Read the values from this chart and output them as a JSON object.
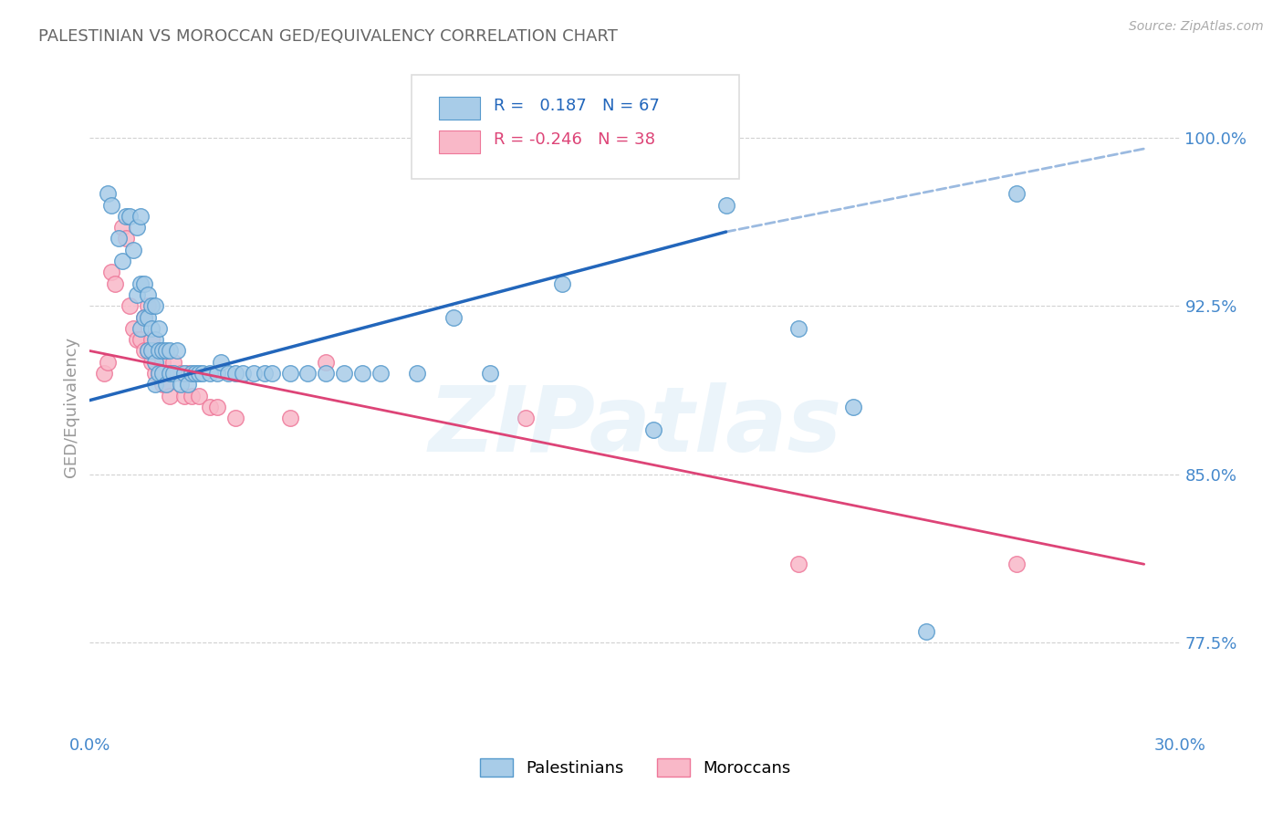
{
  "title": "PALESTINIAN VS MOROCCAN GED/EQUIVALENCY CORRELATION CHART",
  "source": "Source: ZipAtlas.com",
  "legend_blue": "Palestinians",
  "legend_pink": "Moroccans",
  "ylabel": "GED/Equivalency",
  "xlim": [
    0.0,
    0.3
  ],
  "ylim": [
    0.735,
    1.025
  ],
  "xtick_positions": [
    0.0,
    0.3
  ],
  "xtick_labels": [
    "0.0%",
    "30.0%"
  ],
  "ytick_positions": [
    0.775,
    0.85,
    0.925,
    1.0
  ],
  "ytick_labels": [
    "77.5%",
    "85.0%",
    "92.5%",
    "100.0%"
  ],
  "R_blue": 0.187,
  "N_blue": 67,
  "R_pink": -0.246,
  "N_pink": 38,
  "blue_fill": "#a8cce8",
  "blue_edge": "#5599cc",
  "pink_fill": "#f9b8c8",
  "pink_edge": "#ee7799",
  "blue_line": "#2266bb",
  "pink_line": "#dd4477",
  "axis_tick_color": "#4488cc",
  "title_color": "#666666",
  "grid_color": "#cccccc",
  "bg_color": "#ffffff",
  "blue_x": [
    0.005,
    0.006,
    0.008,
    0.009,
    0.01,
    0.011,
    0.012,
    0.013,
    0.013,
    0.014,
    0.014,
    0.014,
    0.015,
    0.015,
    0.016,
    0.016,
    0.016,
    0.017,
    0.017,
    0.017,
    0.018,
    0.018,
    0.018,
    0.018,
    0.019,
    0.019,
    0.019,
    0.02,
    0.02,
    0.021,
    0.021,
    0.022,
    0.022,
    0.023,
    0.024,
    0.025,
    0.026,
    0.027,
    0.028,
    0.029,
    0.03,
    0.031,
    0.033,
    0.035,
    0.036,
    0.038,
    0.04,
    0.042,
    0.045,
    0.048,
    0.05,
    0.055,
    0.06,
    0.065,
    0.07,
    0.075,
    0.08,
    0.09,
    0.1,
    0.11,
    0.13,
    0.155,
    0.175,
    0.195,
    0.21,
    0.23,
    0.255
  ],
  "blue_y": [
    0.975,
    0.97,
    0.955,
    0.945,
    0.965,
    0.965,
    0.95,
    0.96,
    0.93,
    0.965,
    0.935,
    0.915,
    0.935,
    0.92,
    0.93,
    0.92,
    0.905,
    0.925,
    0.915,
    0.905,
    0.925,
    0.91,
    0.9,
    0.89,
    0.915,
    0.905,
    0.895,
    0.905,
    0.895,
    0.905,
    0.89,
    0.905,
    0.895,
    0.895,
    0.905,
    0.89,
    0.895,
    0.89,
    0.895,
    0.895,
    0.895,
    0.895,
    0.895,
    0.895,
    0.9,
    0.895,
    0.895,
    0.895,
    0.895,
    0.895,
    0.895,
    0.895,
    0.895,
    0.895,
    0.895,
    0.895,
    0.895,
    0.895,
    0.92,
    0.895,
    0.935,
    0.87,
    0.97,
    0.915,
    0.88,
    0.78,
    0.975
  ],
  "pink_x": [
    0.004,
    0.005,
    0.006,
    0.007,
    0.009,
    0.01,
    0.011,
    0.012,
    0.013,
    0.014,
    0.015,
    0.015,
    0.016,
    0.016,
    0.017,
    0.017,
    0.018,
    0.018,
    0.019,
    0.019,
    0.02,
    0.02,
    0.021,
    0.022,
    0.023,
    0.025,
    0.026,
    0.027,
    0.028,
    0.03,
    0.033,
    0.035,
    0.04,
    0.055,
    0.065,
    0.12,
    0.195,
    0.255
  ],
  "pink_y": [
    0.895,
    0.9,
    0.94,
    0.935,
    0.96,
    0.955,
    0.925,
    0.915,
    0.91,
    0.91,
    0.92,
    0.905,
    0.925,
    0.905,
    0.91,
    0.9,
    0.905,
    0.895,
    0.905,
    0.895,
    0.9,
    0.89,
    0.89,
    0.885,
    0.9,
    0.895,
    0.885,
    0.895,
    0.885,
    0.885,
    0.88,
    0.88,
    0.875,
    0.875,
    0.9,
    0.875,
    0.81,
    0.81
  ]
}
